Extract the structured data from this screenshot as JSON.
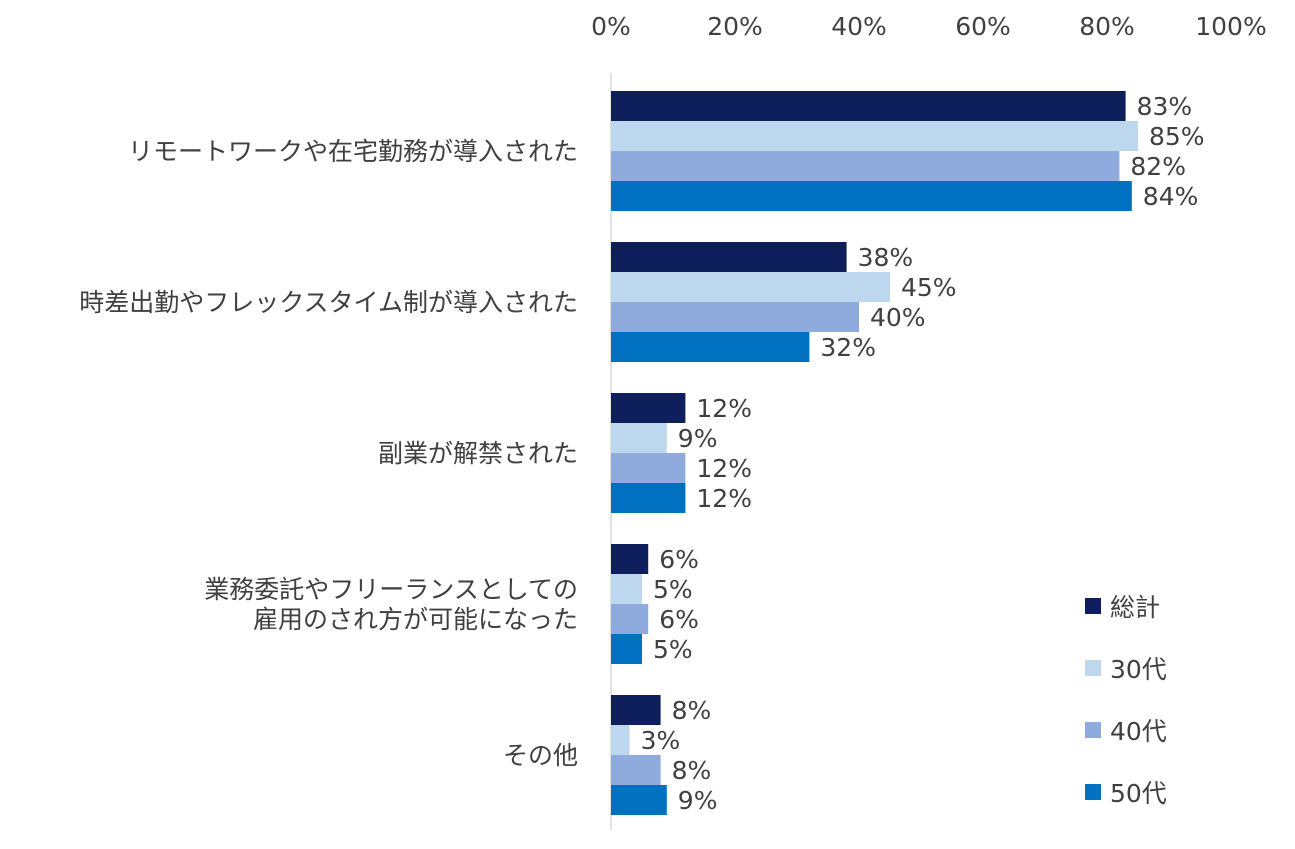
{
  "chart_data": {
    "type": "bar",
    "orientation": "horizontal",
    "title": "",
    "xlabel": "",
    "ylabel": "",
    "xlim": [
      0,
      100
    ],
    "x_ticks": [
      "0%",
      "20%",
      "40%",
      "60%",
      "80%",
      "100%"
    ],
    "x_axis_position": "top",
    "grid": false,
    "legend_position": "bottom-right",
    "categories": [
      [
        "リモートワークや在宅勤務が導入された"
      ],
      [
        "時差出勤やフレックスタイム制が導入された"
      ],
      [
        "副業が解禁された"
      ],
      [
        "業務委託やフリーランスとしての",
        "雇用のされ方が可能になった"
      ],
      [
        "その他"
      ]
    ],
    "series": [
      {
        "name": "総計",
        "color": "#0e1f5b",
        "values": [
          83,
          38,
          12,
          6,
          8
        ],
        "labels": [
          "83%",
          "38%",
          "12%",
          "6%",
          "8%"
        ]
      },
      {
        "name": "30代",
        "color": "#bdd7ee",
        "values": [
          85,
          45,
          9,
          5,
          3
        ],
        "labels": [
          "85%",
          "45%",
          "9%",
          "5%",
          "3%"
        ]
      },
      {
        "name": "40代",
        "color": "#8faadc",
        "values": [
          82,
          40,
          12,
          6,
          8
        ],
        "labels": [
          "82%",
          "40%",
          "12%",
          "6%",
          "8%"
        ]
      },
      {
        "name": "50代",
        "color": "#0070c0",
        "values": [
          84,
          32,
          12,
          5,
          9
        ],
        "labels": [
          "84%",
          "32%",
          "12%",
          "5%",
          "9%"
        ]
      }
    ]
  }
}
